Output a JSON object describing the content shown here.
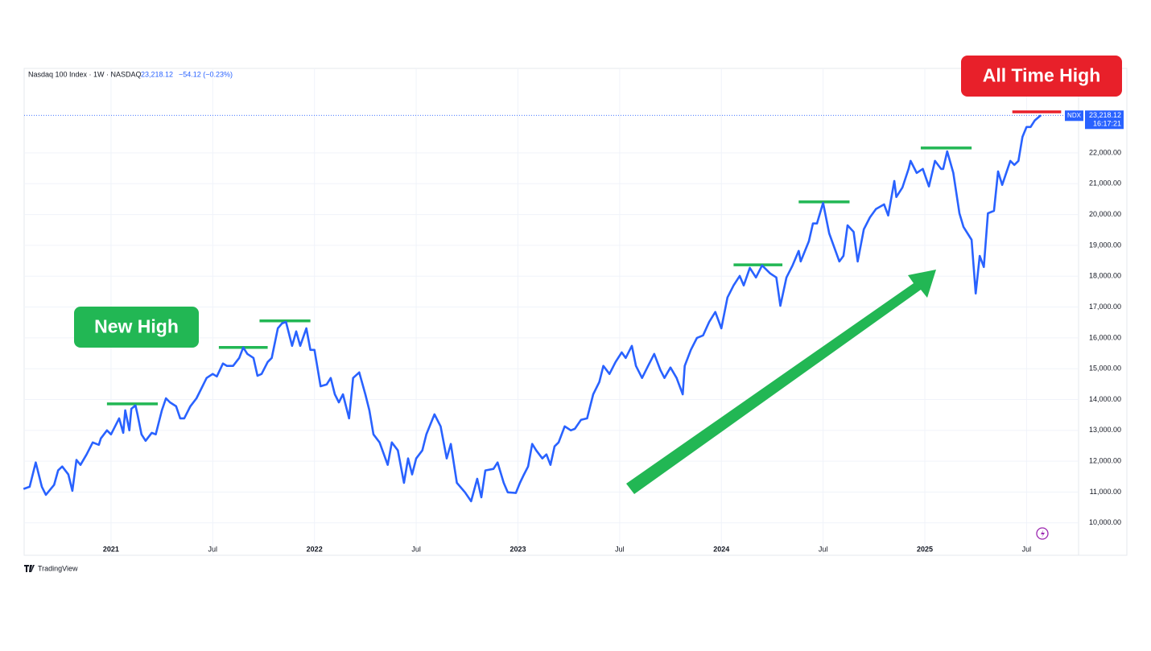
{
  "chart_data": {
    "type": "line",
    "title": "Nasdaq 100 Index · 1W · NASDAQ",
    "last_price_label": "23,218.12",
    "change_label": "−54.12 (−0.23%)",
    "symbol": "NDX",
    "countdown": "16:17:21",
    "brand": "TradingView",
    "badges": [
      {
        "text": "New High",
        "color": "#22b754"
      },
      {
        "text": "All Time High",
        "color": "#e8202a"
      }
    ],
    "grid": true,
    "xlim": [
      2020.573,
      2025.993
    ],
    "ylim": [
      8950,
      24740
    ],
    "xticks": [
      {
        "value": 2021,
        "label": "2021"
      },
      {
        "value": 2021.5,
        "label": "Jul"
      },
      {
        "value": 2022,
        "label": "2022"
      },
      {
        "value": 2022.5,
        "label": "Jul"
      },
      {
        "value": 2023,
        "label": "2023"
      },
      {
        "value": 2023.5,
        "label": "Jul"
      },
      {
        "value": 2024,
        "label": "2024"
      },
      {
        "value": 2024.5,
        "label": "Jul"
      },
      {
        "value": 2025,
        "label": "2025"
      },
      {
        "value": 2025.5,
        "label": "Jul"
      }
    ],
    "yticks": [
      {
        "value": 10000,
        "label": "10,000.00"
      },
      {
        "value": 11000,
        "label": "11,000.00"
      },
      {
        "value": 12000,
        "label": "12,000.00"
      },
      {
        "value": 13000,
        "label": "13,000.00"
      },
      {
        "value": 14000,
        "label": "14,000.00"
      },
      {
        "value": 15000,
        "label": "15,000.00"
      },
      {
        "value": 16000,
        "label": "16,000.00"
      },
      {
        "value": 17000,
        "label": "17,000.00"
      },
      {
        "value": 18000,
        "label": "18,000.00"
      },
      {
        "value": 19000,
        "label": "19,000.00"
      },
      {
        "value": 20000,
        "label": "20,000.00"
      },
      {
        "value": 21000,
        "label": "21,000.00"
      },
      {
        "value": 22000,
        "label": "22,000.00"
      }
    ],
    "x": [
      2020.57,
      2020.6,
      2020.63,
      2020.66,
      2020.68,
      2020.72,
      2020.74,
      2020.76,
      2020.79,
      2020.81,
      2020.83,
      2020.85,
      2020.88,
      2020.91,
      2020.94,
      2020.95,
      2020.98,
      2021.0,
      2021.02,
      2021.04,
      2021.06,
      2021.07,
      2021.09,
      2021.1,
      2021.12,
      2021.13,
      2021.15,
      2021.17,
      2021.2,
      2021.22,
      2021.25,
      2021.27,
      2021.29,
      2021.32,
      2021.34,
      2021.36,
      2021.39,
      2021.42,
      2021.44,
      2021.47,
      2021.5,
      2021.52,
      2021.55,
      2021.57,
      2021.6,
      2021.63,
      2021.65,
      2021.67,
      2021.7,
      2021.72,
      2021.74,
      2021.77,
      2021.79,
      2021.82,
      2021.84,
      2021.86,
      2021.89,
      2021.91,
      2021.93,
      2021.96,
      2021.98,
      2022.0,
      2022.03,
      2022.06,
      2022.08,
      2022.1,
      2022.12,
      2022.14,
      2022.17,
      2022.19,
      2022.22,
      2022.25,
      2022.27,
      2022.29,
      2022.32,
      2022.36,
      2022.38,
      2022.41,
      2022.44,
      2022.46,
      2022.48,
      2022.5,
      2022.53,
      2022.55,
      2022.59,
      2022.62,
      2022.65,
      2022.67,
      2022.7,
      2022.74,
      2022.77,
      2022.8,
      2022.82,
      2022.84,
      2022.88,
      2022.9,
      2022.93,
      2022.95,
      2022.99,
      2023.01,
      2023.03,
      2023.05,
      2023.07,
      2023.09,
      2023.12,
      2023.14,
      2023.16,
      2023.18,
      2023.2,
      2023.23,
      2023.26,
      2023.28,
      2023.31,
      2023.34,
      2023.37,
      2023.4,
      2023.42,
      2023.45,
      2023.48,
      2023.51,
      2023.53,
      2023.56,
      2023.58,
      2023.61,
      2023.64,
      2023.67,
      2023.7,
      2023.72,
      2023.75,
      2023.78,
      2023.81,
      2023.82,
      2023.85,
      2023.88,
      2023.91,
      2023.94,
      2023.97,
      2024.0,
      2024.03,
      2024.06,
      2024.09,
      2024.11,
      2024.14,
      2024.17,
      2024.2,
      2024.24,
      2024.27,
      2024.29,
      2024.32,
      2024.35,
      2024.38,
      2024.39,
      2024.43,
      2024.45,
      2024.47,
      2024.5,
      2024.53,
      2024.58,
      2024.6,
      2024.62,
      2024.65,
      2024.67,
      2024.7,
      2024.73,
      2024.76,
      2024.8,
      2024.82,
      2024.85,
      2024.86,
      2024.89,
      2024.92,
      2024.93,
      2024.96,
      2024.99,
      2025.02,
      2025.05,
      2025.08,
      2025.09,
      2025.11,
      2025.14,
      2025.17,
      2025.19,
      2025.23,
      2025.25,
      2025.27,
      2025.29,
      2025.31,
      2025.34,
      2025.36,
      2025.38,
      2025.42,
      2025.44,
      2025.46,
      2025.48,
      2025.5,
      2025.52,
      2025.54,
      2025.57
    ],
    "series": [
      {
        "name": "NDX",
        "color": "#2962ff",
        "values": [
          11100,
          11170,
          11960,
          11170,
          10910,
          11230,
          11700,
          11830,
          11570,
          11040,
          12040,
          11880,
          12220,
          12610,
          12530,
          12740,
          13000,
          12870,
          13130,
          13390,
          12920,
          13650,
          13000,
          13700,
          13810,
          13520,
          12870,
          12660,
          12920,
          12870,
          13650,
          14040,
          13910,
          13780,
          13390,
          13390,
          13780,
          14040,
          14300,
          14700,
          14830,
          14750,
          15170,
          15090,
          15090,
          15350,
          15690,
          15480,
          15350,
          14770,
          14830,
          15220,
          15350,
          16310,
          16470,
          16520,
          15740,
          16210,
          15740,
          16310,
          15610,
          15610,
          14430,
          14490,
          14700,
          14170,
          13910,
          14170,
          13390,
          14700,
          14880,
          14170,
          13650,
          12870,
          12610,
          11880,
          12610,
          12350,
          11300,
          12090,
          11570,
          12090,
          12350,
          12870,
          13520,
          13130,
          12090,
          12560,
          11300,
          10990,
          10700,
          11430,
          10830,
          11700,
          11750,
          11960,
          11300,
          10990,
          10970,
          11300,
          11570,
          11830,
          12560,
          12350,
          12090,
          12220,
          11880,
          12480,
          12610,
          13130,
          13000,
          13050,
          13340,
          13390,
          14170,
          14570,
          15090,
          14830,
          15220,
          15530,
          15350,
          15740,
          15090,
          14700,
          15090,
          15480,
          14960,
          14700,
          15040,
          14700,
          14170,
          15090,
          15610,
          16000,
          16080,
          16520,
          16840,
          16310,
          17310,
          17700,
          18010,
          17700,
          18270,
          17960,
          18350,
          18090,
          17960,
          17040,
          17960,
          18350,
          18820,
          18480,
          19130,
          19710,
          19710,
          20380,
          19390,
          18480,
          18660,
          19650,
          19440,
          18480,
          19520,
          19910,
          20180,
          20330,
          19970,
          21090,
          20570,
          20880,
          21480,
          21740,
          21350,
          21480,
          20910,
          21740,
          21480,
          21480,
          22050,
          21350,
          20040,
          19600,
          19180,
          17440,
          18660,
          18300,
          20040,
          20120,
          21400,
          20960,
          21740,
          21610,
          21740,
          22520,
          22840,
          22840,
          23050,
          23218.12
        ]
      }
    ],
    "levels": [
      {
        "value": 13860,
        "x": [
          2020.98,
          2021.23
        ],
        "color": "#22b754"
      },
      {
        "value": 15690,
        "x": [
          2021.53,
          2021.77
        ],
        "color": "#22b754"
      },
      {
        "value": 16550,
        "x": [
          2021.73,
          2021.98
        ],
        "color": "#22b754"
      },
      {
        "value": 18370,
        "x": [
          2024.06,
          2024.3
        ],
        "color": "#22b754"
      },
      {
        "value": 20410,
        "x": [
          2024.38,
          2024.63
        ],
        "color": "#22b754"
      },
      {
        "value": 22160,
        "x": [
          2024.98,
          2025.23
        ],
        "color": "#22b754"
      },
      {
        "value": 23330,
        "x": [
          2025.43,
          2025.67
        ],
        "color": "#e8202a"
      }
    ]
  }
}
